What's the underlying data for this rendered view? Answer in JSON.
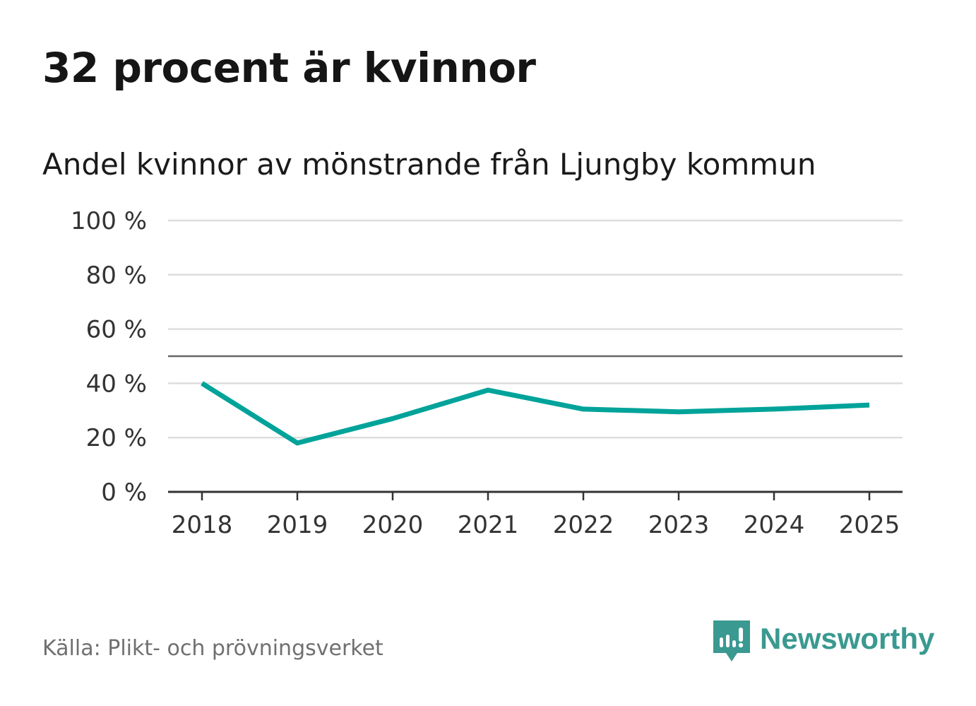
{
  "header": {
    "title": "32 procent är kvinnor",
    "subtitle": "Andel kvinnor av mönstrande från Ljungby kommun"
  },
  "footer": {
    "source": "Källa: Plikt- och prövningsverket",
    "brand": "Newsworthy"
  },
  "colors": {
    "line": "#00a39a",
    "grid": "#dddddd",
    "axis": "#333333",
    "reference": "#666666",
    "brand": "#3a9990"
  },
  "chart_data": {
    "type": "line",
    "title": "32 procent är kvinnor",
    "subtitle": "Andel kvinnor av mönstrande från Ljungby kommun",
    "xlabel": "",
    "ylabel": "",
    "categories": [
      "2018",
      "2019",
      "2020",
      "2021",
      "2022",
      "2023",
      "2024",
      "2025"
    ],
    "series": [
      {
        "name": "Andel kvinnor",
        "values": [
          40,
          18,
          27,
          37.5,
          30.5,
          29.5,
          30.5,
          32
        ]
      }
    ],
    "ylim": [
      0,
      100
    ],
    "yticks": [
      0,
      20,
      40,
      60,
      80,
      100
    ],
    "ytick_labels": [
      "0 %",
      "20 %",
      "40 %",
      "60 %",
      "80 %",
      "100 %"
    ],
    "reference_line": 50,
    "grid": true,
    "legend": "none"
  }
}
